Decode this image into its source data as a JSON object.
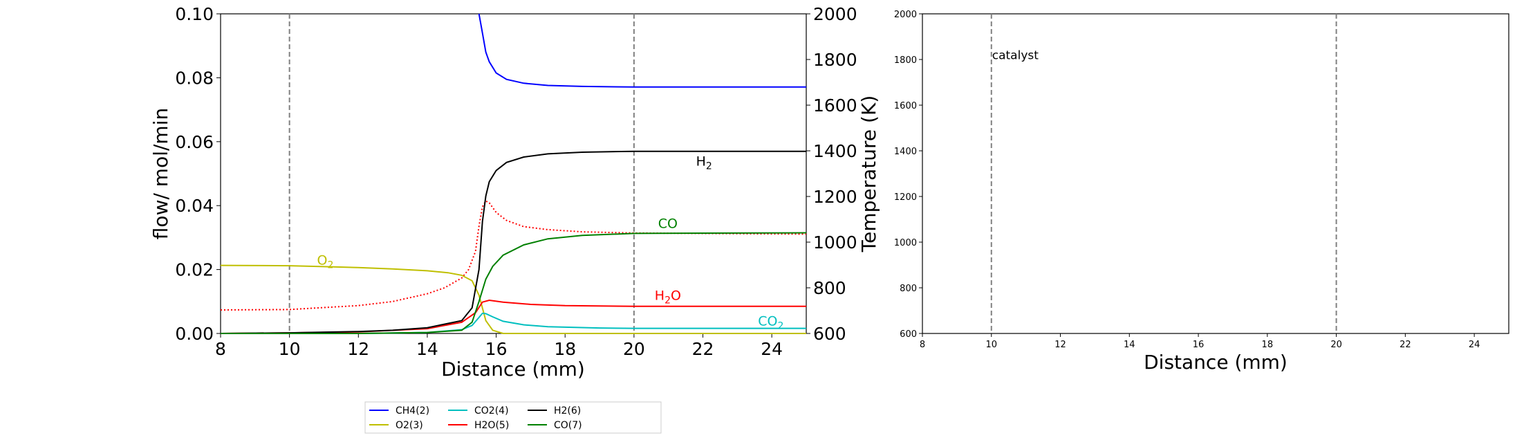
{
  "chart_data": [
    {
      "type": "line",
      "xlabel": "Distance (mm)",
      "ylabel": "flow/ mol/min",
      "y2label": "Temperature (K)",
      "xlim": [
        8,
        25
      ],
      "ylim": [
        0,
        0.1
      ],
      "y2lim": [
        600,
        2000
      ],
      "xticks": [
        "8",
        "10",
        "12",
        "14",
        "16",
        "18",
        "20",
        "22",
        "24"
      ],
      "yticks": [
        "0.00",
        "0.02",
        "0.04",
        "0.06",
        "0.08",
        "0.10"
      ],
      "y2ticks": [
        "600",
        "800",
        "1000",
        "1200",
        "1400",
        "1600",
        "1800",
        "2000"
      ],
      "vlines": [
        10,
        20
      ],
      "grid": false,
      "series": [
        {
          "name": "CH4(2)",
          "color": "#0000ff",
          "x": [
            15.5,
            15.6,
            15.7,
            15.8,
            16,
            16.3,
            16.8,
            17.5,
            18.5,
            20,
            25
          ],
          "y": [
            0.1,
            0.094,
            0.088,
            0.085,
            0.0815,
            0.0795,
            0.0783,
            0.0776,
            0.0773,
            0.0771,
            0.0771
          ]
        },
        {
          "name": "O2(3)",
          "color": "#bfbf00",
          "x": [
            8,
            10,
            11,
            12,
            13,
            14,
            14.6,
            15,
            15.3,
            15.5,
            15.7,
            15.9,
            16.2,
            25
          ],
          "y": [
            0.0213,
            0.0212,
            0.0209,
            0.0206,
            0.0202,
            0.0196,
            0.019,
            0.0182,
            0.0165,
            0.012,
            0.004,
            0.001,
            0,
            0
          ]
        },
        {
          "name": "CO2(4)",
          "color": "#00bfbf",
          "x": [
            8,
            12,
            14,
            15,
            15.3,
            15.5,
            15.6,
            15.7,
            15.9,
            16.2,
            16.8,
            17.5,
            19,
            20,
            25
          ],
          "y": [
            0,
            0,
            0.0003,
            0.0012,
            0.0025,
            0.005,
            0.0063,
            0.0062,
            0.0052,
            0.0038,
            0.0027,
            0.0021,
            0.0017,
            0.0016,
            0.0016
          ]
        },
        {
          "name": "H2O(5)",
          "color": "#ff0000",
          "x": [
            8,
            10,
            12,
            14,
            15,
            15.4,
            15.6,
            15.8,
            16.2,
            17,
            18,
            20,
            25
          ],
          "y": [
            0,
            0.0002,
            0.0005,
            0.0015,
            0.0035,
            0.0065,
            0.0098,
            0.0104,
            0.0098,
            0.0091,
            0.0087,
            0.0085,
            0.0085
          ]
        },
        {
          "name": "H2(6)",
          "color": "#000000",
          "x": [
            8,
            10,
            12,
            13,
            14,
            15,
            15.3,
            15.5,
            15.6,
            15.7,
            15.8,
            16,
            16.3,
            16.8,
            17.5,
            18.5,
            20,
            25
          ],
          "y": [
            0,
            0.0002,
            0.0006,
            0.001,
            0.0018,
            0.004,
            0.008,
            0.02,
            0.035,
            0.043,
            0.0475,
            0.051,
            0.0535,
            0.0552,
            0.0562,
            0.0567,
            0.057,
            0.057
          ]
        },
        {
          "name": "CO(7)",
          "color": "#008000",
          "x": [
            8,
            12,
            14,
            15,
            15.3,
            15.5,
            15.7,
            15.9,
            16.2,
            16.8,
            17.5,
            18.5,
            20,
            25
          ],
          "y": [
            0,
            0,
            0.0003,
            0.001,
            0.0035,
            0.01,
            0.017,
            0.021,
            0.0245,
            0.0277,
            0.0296,
            0.0307,
            0.0313,
            0.0315
          ]
        }
      ],
      "temperature": {
        "color": "#ff0000",
        "style": "dotted",
        "x": [
          8,
          10,
          12,
          13,
          14,
          14.5,
          15,
          15.2,
          15.4,
          15.5,
          15.6,
          15.7,
          15.8,
          16,
          16.3,
          16.8,
          17.5,
          18.5,
          20,
          25
        ],
        "y": [
          703,
          705,
          722,
          740,
          774,
          800,
          843,
          880,
          960,
          1070,
          1155,
          1180,
          1172,
          1130,
          1095,
          1068,
          1055,
          1045,
          1040,
          1035
        ]
      },
      "annotations": [
        {
          "base": "O",
          "sub": "2",
          "x": 10.8,
          "y": 0.0215,
          "color": "#bfbf00"
        },
        {
          "base": "CO",
          "sub": "",
          "x": 20.7,
          "y": 0.033,
          "color": "#008000"
        },
        {
          "base": "H",
          "sub": "2",
          "x": 21.8,
          "y": 0.0525,
          "color": "#000000"
        },
        {
          "base": "H",
          "sub": "2",
          "tail": "O",
          "x": 20.6,
          "y": 0.0105,
          "color": "#ff0000"
        },
        {
          "base": "CO",
          "sub": "2",
          "x": 23.6,
          "y": 0.0025,
          "color": "#00bfbf"
        }
      ]
    },
    {
      "type": "line",
      "xlabel": "Distance (mm)",
      "ylabel": "",
      "xlim": [
        8,
        25
      ],
      "ylim": [
        600,
        2000
      ],
      "xticks": [
        "8",
        "10",
        "12",
        "14",
        "16",
        "18",
        "20",
        "22",
        "24"
      ],
      "yticks": [
        "600",
        "800",
        "1000",
        "1200",
        "1400",
        "1600",
        "1800",
        "2000"
      ],
      "vlines": [
        10,
        20
      ],
      "grid": false,
      "annotations": [
        {
          "text": "catalyst",
          "x": 10,
          "y": 1820
        }
      ],
      "series": []
    }
  ],
  "legend": {
    "placement": "bottom-center",
    "entries": [
      {
        "label": "CH4(2)",
        "color": "#0000ff"
      },
      {
        "label": "O2(3)",
        "color": "#bfbf00"
      },
      {
        "label": "CO2(4)",
        "color": "#00bfbf"
      },
      {
        "label": "H2O(5)",
        "color": "#ff0000"
      },
      {
        "label": "H2(6)",
        "color": "#000000"
      },
      {
        "label": "CO(7)",
        "color": "#008000"
      }
    ]
  }
}
